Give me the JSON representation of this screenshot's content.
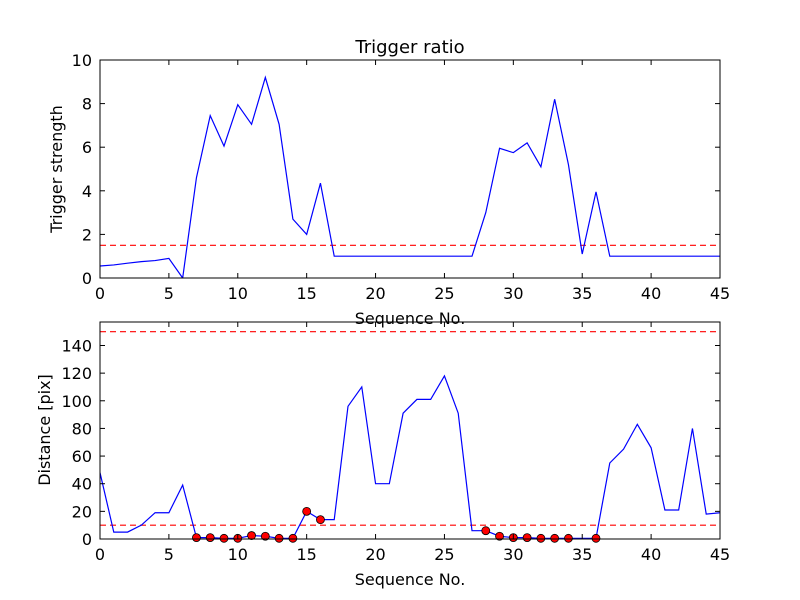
{
  "chart_data": [
    {
      "type": "line",
      "title": "Trigger ratio",
      "xlabel": "Sequence No.",
      "ylabel": "Trigger strength",
      "xlim": [
        0,
        45
      ],
      "ylim": [
        0,
        10
      ],
      "xticks": [
        0,
        5,
        10,
        15,
        20,
        25,
        30,
        35,
        40,
        45
      ],
      "yticks": [
        0,
        2,
        4,
        6,
        8,
        10
      ],
      "grid": false,
      "series": [
        {
          "color": "#0000ff",
          "style": "solid",
          "points": [
            [
              0,
              0.55
            ],
            [
              1,
              0.6
            ],
            [
              2,
              0.68
            ],
            [
              3,
              0.75
            ],
            [
              4,
              0.8
            ],
            [
              5,
              0.9
            ],
            [
              6,
              0.0
            ],
            [
              7,
              4.6
            ],
            [
              8,
              7.45
            ],
            [
              9,
              6.05
            ],
            [
              10,
              7.95
            ],
            [
              11,
              7.05
            ],
            [
              12,
              9.2
            ],
            [
              13,
              7.05
            ],
            [
              14,
              2.7
            ],
            [
              15,
              2.0
            ],
            [
              16,
              4.35
            ],
            [
              17,
              1.0
            ],
            [
              18,
              1.0
            ],
            [
              19,
              1.0
            ],
            [
              20,
              1.0
            ],
            [
              21,
              1.0
            ],
            [
              22,
              1.0
            ],
            [
              23,
              1.0
            ],
            [
              24,
              1.0
            ],
            [
              25,
              1.0
            ],
            [
              26,
              1.0
            ],
            [
              27,
              1.0
            ],
            [
              28,
              3.0
            ],
            [
              29,
              5.95
            ],
            [
              30,
              5.75
            ],
            [
              31,
              6.2
            ],
            [
              32,
              5.1
            ],
            [
              33,
              8.2
            ],
            [
              34,
              5.2
            ],
            [
              35,
              1.1
            ],
            [
              36,
              3.95
            ],
            [
              37,
              1.0
            ],
            [
              38,
              1.0
            ],
            [
              39,
              1.0
            ],
            [
              40,
              1.0
            ],
            [
              41,
              1.0
            ],
            [
              42,
              1.0
            ],
            [
              43,
              1.0
            ],
            [
              44,
              1.0
            ],
            [
              45,
              1.0
            ]
          ]
        }
      ],
      "hlines": [
        {
          "y": 1.5,
          "color": "#ff0000",
          "style": "dashed"
        }
      ]
    },
    {
      "type": "line",
      "title": "",
      "xlabel": "Sequence No.",
      "ylabel": "Distance [pix]",
      "xlim": [
        0,
        45
      ],
      "ylim": [
        0,
        157
      ],
      "xticks": [
        0,
        5,
        10,
        15,
        20,
        25,
        30,
        35,
        40,
        45
      ],
      "yticks": [
        0,
        20,
        40,
        60,
        80,
        100,
        120,
        140
      ],
      "grid": false,
      "series": [
        {
          "color": "#0000ff",
          "style": "solid",
          "points": [
            [
              0,
              48
            ],
            [
              1,
              5
            ],
            [
              2,
              5
            ],
            [
              3,
              10
            ],
            [
              4,
              19
            ],
            [
              5,
              19
            ],
            [
              6,
              39
            ],
            [
              7,
              1
            ],
            [
              8,
              1
            ],
            [
              9,
              0.5
            ],
            [
              10,
              0.5
            ],
            [
              11,
              2.5
            ],
            [
              12,
              2
            ],
            [
              13,
              0.5
            ],
            [
              14,
              0.5
            ],
            [
              15,
              20
            ],
            [
              16,
              14
            ],
            [
              17,
              14
            ],
            [
              18,
              96
            ],
            [
              19,
              110
            ],
            [
              20,
              40
            ],
            [
              21,
              40
            ],
            [
              22,
              91
            ],
            [
              23,
              101
            ],
            [
              24,
              101
            ],
            [
              25,
              118
            ],
            [
              26,
              91
            ],
            [
              27,
              6
            ],
            [
              28,
              6
            ],
            [
              29,
              2
            ],
            [
              30,
              1
            ],
            [
              31,
              1
            ],
            [
              32,
              0.5
            ],
            [
              33,
              0.5
            ],
            [
              34,
              0.5
            ],
            [
              35,
              0.5
            ],
            [
              36,
              0.5
            ],
            [
              37,
              55
            ],
            [
              38,
              65
            ],
            [
              39,
              83
            ],
            [
              40,
              66
            ],
            [
              41,
              21
            ],
            [
              42,
              21
            ],
            [
              43,
              80
            ],
            [
              44,
              18
            ],
            [
              45,
              19
            ]
          ]
        },
        {
          "color": "#ff0000",
          "style": "markers",
          "points": [
            [
              7,
              1
            ],
            [
              8,
              1
            ],
            [
              9,
              0.5
            ],
            [
              10,
              0.5
            ],
            [
              11,
              2.5
            ],
            [
              12,
              2
            ],
            [
              13,
              0.5
            ],
            [
              14,
              0.5
            ],
            [
              15,
              20
            ],
            [
              16,
              14
            ],
            [
              28,
              6
            ],
            [
              29,
              2
            ],
            [
              30,
              1
            ],
            [
              31,
              1
            ],
            [
              32,
              0.5
            ],
            [
              33,
              0.5
            ],
            [
              34,
              0.5
            ],
            [
              36,
              0.5
            ]
          ]
        }
      ],
      "hlines": [
        {
          "y": 10,
          "color": "#ff0000",
          "style": "dashed"
        },
        {
          "y": 150,
          "color": "#ff0000",
          "style": "dashed"
        }
      ]
    }
  ]
}
